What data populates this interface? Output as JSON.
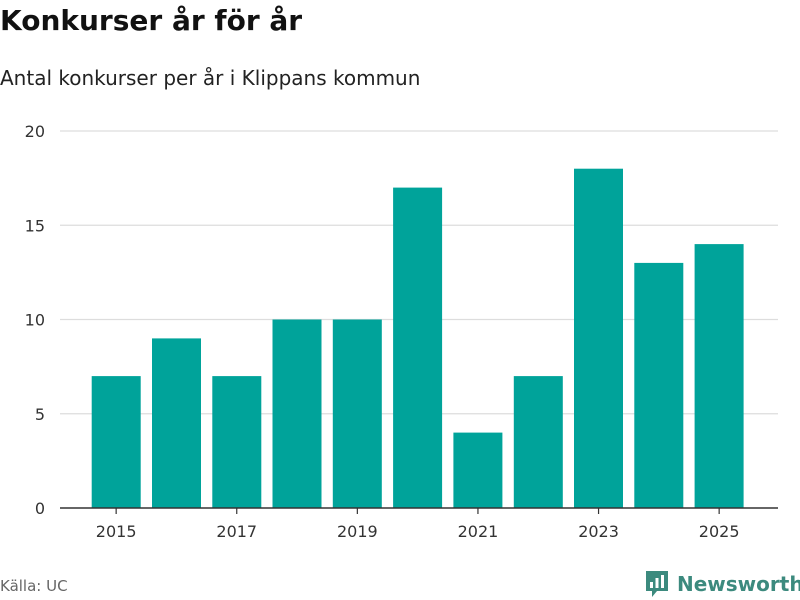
{
  "header": {
    "title": "Konkurser år för år",
    "subtitle": "Antal konkurser per år i Klippans kommun"
  },
  "footer": {
    "source": "Källa: UC",
    "brand": "Newsworthy"
  },
  "colors": {
    "bar": "#00a39a",
    "brand": "#3c8a7e",
    "grid": "#dddddd",
    "axis": "#333333"
  },
  "chart_data": {
    "type": "bar",
    "title": "Konkurser år för år",
    "subtitle": "Antal konkurser per år i Klippans kommun",
    "xlabel": "",
    "ylabel": "",
    "categories": [
      "2015",
      "2016",
      "2017",
      "2018",
      "2019",
      "2020",
      "2021",
      "2022",
      "2023",
      "2024",
      "2025"
    ],
    "values": [
      7,
      9,
      7,
      10,
      10,
      17,
      4,
      7,
      18,
      13,
      14
    ],
    "ylim": [
      0,
      20
    ],
    "yticks": [
      0,
      5,
      10,
      15,
      20
    ],
    "xtick_labels": [
      "2015",
      "2017",
      "2019",
      "2021",
      "2023",
      "2025"
    ],
    "grid": true,
    "legend": "none"
  }
}
